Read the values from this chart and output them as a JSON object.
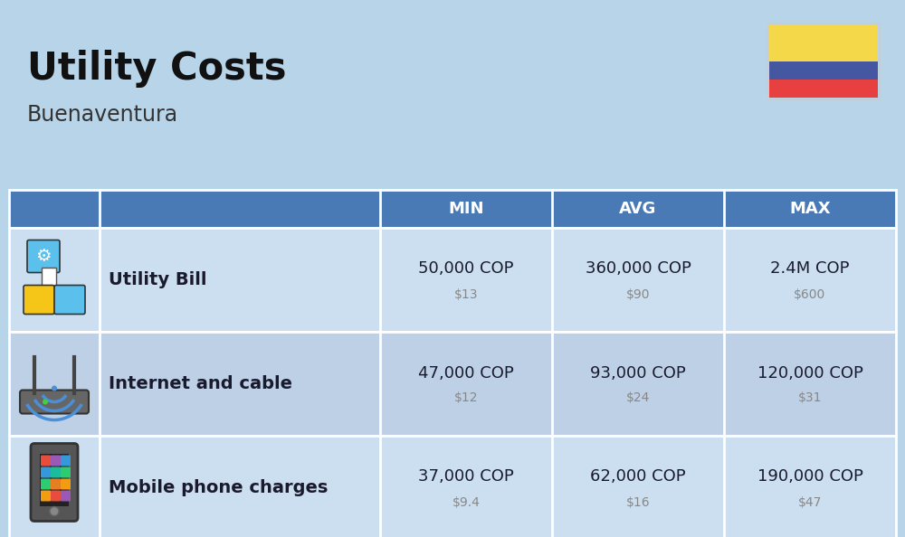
{
  "title": "Utility Costs",
  "subtitle": "Buenaventura",
  "background_color": "#b8d4e8",
  "header_bg_color": "#4a7ab5",
  "header_text_color": "#ffffff",
  "row_bg_color_1": "#ccdff0",
  "row_bg_color_2": "#bdd0e5",
  "table_border_color": "#ffffff",
  "headers": [
    "MIN",
    "AVG",
    "MAX"
  ],
  "rows": [
    {
      "icon_label": "utility",
      "name": "Utility Bill",
      "min_cop": "50,000 COP",
      "min_usd": "$13",
      "avg_cop": "360,000 COP",
      "avg_usd": "$90",
      "max_cop": "2.4M COP",
      "max_usd": "$600"
    },
    {
      "icon_label": "internet",
      "name": "Internet and cable",
      "min_cop": "47,000 COP",
      "min_usd": "$12",
      "avg_cop": "93,000 COP",
      "avg_usd": "$24",
      "max_cop": "120,000 COP",
      "max_usd": "$31"
    },
    {
      "icon_label": "mobile",
      "name": "Mobile phone charges",
      "min_cop": "37,000 COP",
      "min_usd": "$9.4",
      "avg_cop": "62,000 COP",
      "avg_usd": "$16",
      "max_cop": "190,000 COP",
      "max_usd": "$47"
    }
  ],
  "flag_colors": [
    "#f5d84a",
    "#4457a0",
    "#e84040"
  ],
  "title_fontsize": 30,
  "subtitle_fontsize": 17,
  "header_fontsize": 13,
  "name_fontsize": 14,
  "value_fontsize": 13,
  "usd_fontsize": 10,
  "title_color": "#111111",
  "subtitle_color": "#333333",
  "value_color": "#1a1a2e",
  "usd_color": "#888888"
}
